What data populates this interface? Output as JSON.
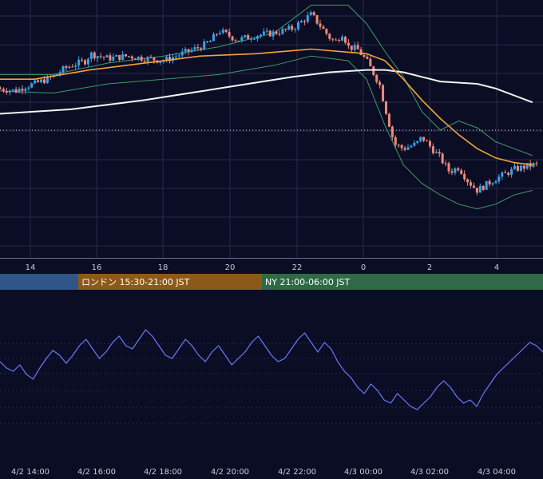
{
  "colors": {
    "background": "#0b0d24",
    "grid": "#262a4a",
    "candle_up": "#3aa0e8",
    "candle_down": "#ef8a7a",
    "ma_short": "#f5a33a",
    "ma_long": "#f2f2f2",
    "bollinger": "#3f9a6a",
    "oscillator": "#6a78ff",
    "session_tokyo": "#2e5688",
    "session_london": "#8c5a18",
    "session_ny": "#2d6a45",
    "tick_text": "#c8cbd8"
  },
  "chart_data": [
    {
      "type": "candlestick",
      "title": "",
      "x_ticks": [
        "14",
        "16",
        "18",
        "20",
        "22",
        "0",
        "2",
        "4"
      ],
      "ylim": [
        0,
        100
      ],
      "grid": true,
      "reference_line": 50,
      "close_series_hours_from_1300": [
        [
          0,
          68
        ],
        [
          1,
          67
        ],
        [
          1.5,
          69
        ],
        [
          2,
          70
        ],
        [
          3,
          73
        ],
        [
          3.5,
          76
        ],
        [
          4,
          78
        ],
        [
          4.8,
          80
        ],
        [
          5,
          83
        ],
        [
          6,
          81
        ],
        [
          7,
          82
        ],
        [
          8,
          81
        ],
        [
          9,
          80
        ],
        [
          10,
          83
        ],
        [
          11,
          86
        ],
        [
          11.5,
          88
        ],
        [
          12,
          93
        ],
        [
          13,
          89
        ],
        [
          14,
          91
        ],
        [
          15,
          92
        ],
        [
          16,
          94
        ],
        [
          17,
          100
        ],
        [
          18,
          90
        ],
        [
          18.3,
          88
        ],
        [
          18.7,
          92
        ],
        [
          19,
          86
        ],
        [
          19.5,
          85
        ],
        [
          20,
          80
        ],
        [
          20.7,
          70
        ],
        [
          21,
          60
        ],
        [
          21.5,
          44
        ],
        [
          22,
          42
        ],
        [
          22.7,
          44
        ],
        [
          23,
          47
        ],
        [
          24,
          38
        ],
        [
          24.5,
          32
        ],
        [
          25,
          34
        ],
        [
          25.5,
          28
        ],
        [
          26,
          24
        ],
        [
          27,
          29
        ],
        [
          28,
          33
        ],
        [
          29,
          35
        ]
      ],
      "ma_short_values": [
        [
          0,
          72
        ],
        [
          2,
          72
        ],
        [
          5,
          76
        ],
        [
          8,
          79
        ],
        [
          11,
          82
        ],
        [
          14,
          83
        ],
        [
          17,
          85
        ],
        [
          20,
          83
        ],
        [
          21,
          80
        ],
        [
          22,
          72
        ],
        [
          23,
          63
        ],
        [
          24,
          55
        ],
        [
          25,
          48
        ],
        [
          26,
          42
        ],
        [
          27,
          38
        ],
        [
          28,
          36
        ],
        [
          29,
          35
        ]
      ],
      "ma_long_values": [
        [
          0,
          57
        ],
        [
          4,
          59
        ],
        [
          8,
          63
        ],
        [
          12,
          68
        ],
        [
          16,
          73
        ],
        [
          18,
          75
        ],
        [
          20,
          76
        ],
        [
          21,
          76
        ],
        [
          22,
          75
        ],
        [
          23,
          73
        ],
        [
          24,
          71
        ],
        [
          26,
          70
        ],
        [
          27,
          68
        ],
        [
          28,
          65
        ],
        [
          29,
          62
        ]
      ],
      "bollinger_upper": [
        [
          0,
          74
        ],
        [
          3,
          74
        ],
        [
          6,
          79
        ],
        [
          9,
          82
        ],
        [
          12,
          86
        ],
        [
          15,
          92
        ],
        [
          17,
          104
        ],
        [
          19,
          104
        ],
        [
          20,
          96
        ],
        [
          21,
          84
        ],
        [
          22,
          73
        ],
        [
          23,
          58
        ],
        [
          24,
          50
        ],
        [
          25,
          54
        ],
        [
          26,
          51
        ],
        [
          27,
          45
        ],
        [
          28,
          42
        ],
        [
          29,
          39
        ]
      ],
      "bollinger_lower": [
        [
          0,
          67
        ],
        [
          3,
          66
        ],
        [
          6,
          70
        ],
        [
          9,
          72
        ],
        [
          12,
          74
        ],
        [
          15,
          78
        ],
        [
          17,
          82
        ],
        [
          19,
          80
        ],
        [
          20,
          72
        ],
        [
          21,
          52
        ],
        [
          22,
          35
        ],
        [
          23,
          27
        ],
        [
          24,
          22
        ],
        [
          25,
          18
        ],
        [
          26,
          16
        ],
        [
          27,
          18
        ],
        [
          28,
          22
        ],
        [
          29,
          24
        ]
      ]
    },
    {
      "type": "line",
      "title": "",
      "x_ticks": [
        "4/2 14:00",
        "4/2 16:00",
        "4/2 18:00",
        "4/2 20:00",
        "4/2 22:00",
        "4/3 00:00",
        "4/3 02:00",
        "4/3 04:00"
      ],
      "ylim": [
        0,
        100
      ],
      "grid": true,
      "values": [
        56,
        52,
        50,
        54,
        48,
        45,
        52,
        58,
        63,
        60,
        55,
        60,
        66,
        70,
        64,
        58,
        62,
        68,
        72,
        66,
        64,
        70,
        76,
        72,
        66,
        60,
        58,
        64,
        70,
        66,
        60,
        56,
        62,
        66,
        60,
        54,
        58,
        62,
        68,
        72,
        66,
        60,
        56,
        58,
        64,
        70,
        74,
        68,
        62,
        68,
        64,
        56,
        50,
        46,
        40,
        36,
        42,
        38,
        32,
        30,
        36,
        32,
        28,
        26,
        30,
        34,
        40,
        44,
        40,
        34,
        30,
        32,
        28,
        36,
        42,
        48,
        52,
        56,
        60,
        64,
        68,
        66,
        62
      ]
    }
  ],
  "sessions": [
    {
      "label": ""
    },
    {
      "label": "ロンドン 15:30-21:00 JST"
    },
    {
      "label": "NY 21:00-06:00 JST"
    }
  ]
}
